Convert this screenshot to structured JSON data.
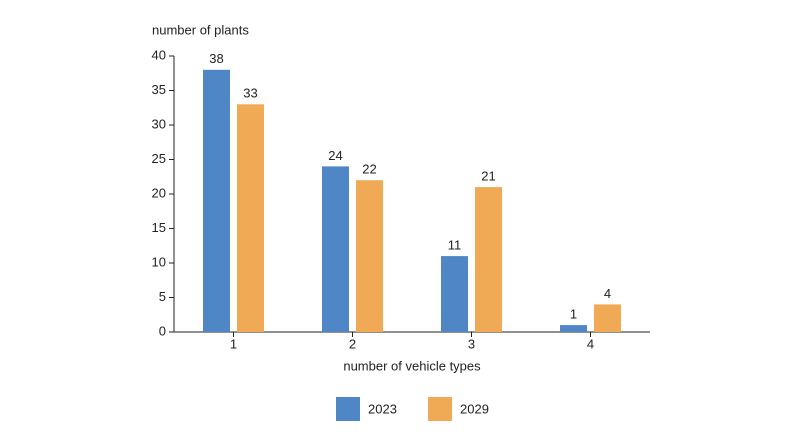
{
  "chart_data": {
    "type": "bar",
    "title": "number of plants",
    "x_label": "number of vehicle types",
    "categories": [
      "1",
      "2",
      "3",
      "4"
    ],
    "series": [
      {
        "name": "2023",
        "color": "#4e86c6",
        "values": [
          38,
          24,
          11,
          1
        ]
      },
      {
        "name": "2029",
        "color": "#f0a955",
        "values": [
          33,
          22,
          21,
          4
        ]
      }
    ],
    "ylim": [
      0,
      40
    ],
    "yticks": [
      0,
      5,
      10,
      15,
      20,
      25,
      30,
      35,
      40
    ],
    "grid": false,
    "legend": "bottom"
  }
}
